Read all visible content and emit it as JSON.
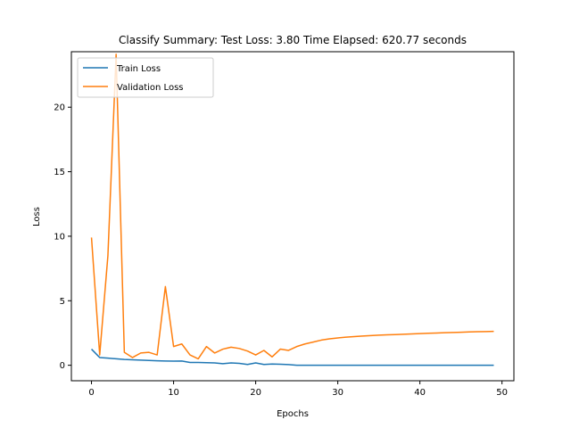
{
  "chart_data": {
    "type": "line",
    "title": "Classify Summary: Test Loss: 3.80 Time Elapsed: 620.77 seconds",
    "xlabel": "Epochs",
    "ylabel": "Loss",
    "xlim": [
      -2.45,
      51.45
    ],
    "ylim": [
      -1.2,
      24.3
    ],
    "xticks": [
      0,
      10,
      20,
      30,
      40,
      50
    ],
    "yticks": [
      0,
      5,
      10,
      15,
      20
    ],
    "grid": false,
    "legend": "upper-left",
    "x": [
      0,
      1,
      2,
      3,
      4,
      5,
      6,
      7,
      8,
      9,
      10,
      11,
      12,
      13,
      14,
      15,
      16,
      17,
      18,
      19,
      20,
      21,
      22,
      23,
      24,
      25,
      26,
      27,
      28,
      29,
      30,
      31,
      32,
      33,
      34,
      35,
      36,
      37,
      38,
      39,
      40,
      41,
      42,
      43,
      44,
      45,
      46,
      47,
      48,
      49
    ],
    "series": [
      {
        "name": "Train Loss",
        "color": "#1f77b4",
        "values": [
          1.25,
          0.6,
          0.55,
          0.5,
          0.45,
          0.42,
          0.4,
          0.37,
          0.35,
          0.33,
          0.32,
          0.33,
          0.22,
          0.22,
          0.2,
          0.18,
          0.12,
          0.18,
          0.15,
          0.06,
          0.18,
          0.06,
          0.1,
          0.08,
          0.05,
          0,
          0,
          0,
          0,
          0,
          0,
          0,
          0,
          0,
          0,
          0,
          0,
          0,
          0,
          0,
          0,
          0,
          0,
          0,
          0,
          0,
          0,
          0,
          0,
          0
        ]
      },
      {
        "name": "Validation Loss",
        "color": "#ff7f0e",
        "values": [
          9.9,
          0.8,
          8.5,
          24.1,
          1.0,
          0.6,
          0.95,
          1.0,
          0.8,
          6.1,
          1.45,
          1.65,
          0.8,
          0.5,
          1.45,
          0.95,
          1.25,
          1.4,
          1.3,
          1.1,
          0.8,
          1.15,
          0.65,
          1.25,
          1.15,
          1.45,
          1.65,
          1.8,
          1.95,
          2.05,
          2.12,
          2.18,
          2.22,
          2.26,
          2.3,
          2.33,
          2.36,
          2.38,
          2.4,
          2.43,
          2.45,
          2.48,
          2.5,
          2.52,
          2.54,
          2.56,
          2.58,
          2.6,
          2.61,
          2.63
        ]
      }
    ]
  }
}
